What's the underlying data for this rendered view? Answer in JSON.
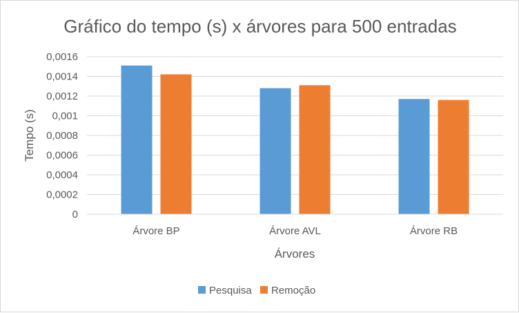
{
  "chart_data": {
    "type": "bar",
    "title": "Gráfico do tempo (s) x árvores para 500 entradas",
    "xlabel": "Árvores",
    "ylabel": "Tempo (s)",
    "categories": [
      "Árvore BP",
      "Árvore AVL",
      "Árvore RB"
    ],
    "series": [
      {
        "name": "Pesquisa",
        "color": "#5b9bd5",
        "values": [
          0.00151,
          0.00128,
          0.00117
        ]
      },
      {
        "name": "Remoção",
        "color": "#ed7d31",
        "values": [
          0.00142,
          0.00131,
          0.00116
        ]
      }
    ],
    "ylim": [
      0,
      0.0016
    ],
    "yticks": [
      "0",
      "0,0002",
      "0,0004",
      "0,0006",
      "0,0008",
      "0,001",
      "0,0012",
      "0,0014",
      "0,0016"
    ],
    "grid": true,
    "legend": "bottom"
  }
}
